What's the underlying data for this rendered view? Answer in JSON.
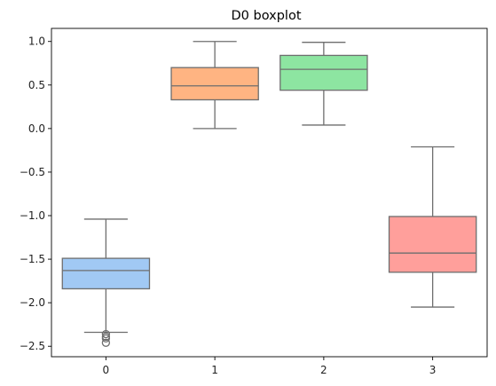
{
  "chart_data": {
    "type": "boxplot",
    "title": "D0 boxplot",
    "xlabel": "",
    "ylabel": "",
    "categories": [
      "0",
      "1",
      "2",
      "3"
    ],
    "ylim": [
      -2.62,
      1.15
    ],
    "yticks": [
      1.0,
      0.5,
      0.0,
      -0.5,
      -1.0,
      -1.5,
      -2.0,
      -2.5
    ],
    "ytick_labels": [
      "1.0",
      "0.5",
      "0.0",
      "−0.5",
      "−1.0",
      "−1.5",
      "−2.0",
      "−2.5"
    ],
    "grid": false,
    "boxes": [
      {
        "category": "0",
        "whisker_low": -2.34,
        "q1": -1.84,
        "median": -1.63,
        "q3": -1.49,
        "whisker_high": -1.04,
        "outliers": [
          -2.36,
          -2.39,
          -2.41,
          -2.46
        ],
        "color": "#a1c9f4"
      },
      {
        "category": "1",
        "whisker_low": 0.0,
        "q1": 0.33,
        "median": 0.49,
        "q3": 0.7,
        "whisker_high": 1.0,
        "outliers": [],
        "color": "#ffb482"
      },
      {
        "category": "2",
        "whisker_low": 0.04,
        "q1": 0.44,
        "median": 0.68,
        "q3": 0.84,
        "whisker_high": 0.99,
        "outliers": [],
        "color": "#8de5a1"
      },
      {
        "category": "3",
        "whisker_low": -2.05,
        "q1": -1.65,
        "median": -1.43,
        "q3": -1.01,
        "whisker_high": -0.21,
        "outliers": [],
        "color": "#ff9f9b"
      }
    ]
  }
}
